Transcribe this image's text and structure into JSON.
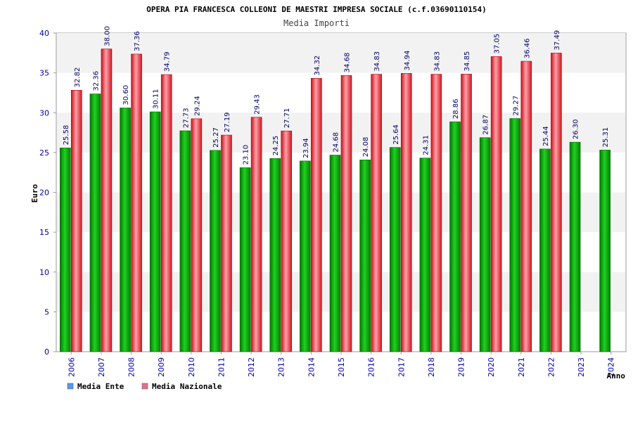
{
  "chart_data": {
    "type": "bar",
    "title": "OPERA PIA FRANCESCA COLLEONI DE MAESTRI IMPRESA SOCIALE (c.f.03690110154)",
    "subtitle": "Media Importi",
    "xlabel": "Anno",
    "ylabel": "Euro",
    "ylim": [
      0,
      40
    ],
    "yticks": [
      0,
      5,
      10,
      15,
      20,
      25,
      30,
      35,
      40
    ],
    "grid": true,
    "legend_position": "bottom-left",
    "categories": [
      "2006",
      "2007",
      "2008",
      "2009",
      "2010",
      "2011",
      "2012",
      "2013",
      "2014",
      "2015",
      "2016",
      "2017",
      "2018",
      "2019",
      "2020",
      "2021",
      "2022",
      "2023",
      "2024"
    ],
    "series": [
      {
        "name": "Media Ente",
        "legend_color": "#5599ee",
        "bar_color": "#00aa00",
        "values": [
          25.58,
          32.36,
          30.6,
          30.11,
          27.73,
          25.27,
          23.1,
          24.25,
          23.94,
          24.68,
          24.08,
          25.64,
          24.31,
          28.86,
          26.87,
          29.27,
          25.44,
          26.3,
          25.31
        ]
      },
      {
        "name": "Media Nazionale",
        "legend_color": "#e07090",
        "bar_color": "#e8202a",
        "values": [
          32.82,
          38.0,
          37.36,
          34.79,
          29.24,
          27.19,
          29.43,
          27.71,
          34.32,
          34.68,
          34.83,
          34.94,
          34.83,
          34.85,
          37.05,
          36.46,
          37.49,
          null,
          null
        ]
      }
    ]
  },
  "colors": {
    "tick_label": "#0000aa",
    "value_label": "#000066",
    "band": "#f2f2f2",
    "axis": "#999999"
  }
}
